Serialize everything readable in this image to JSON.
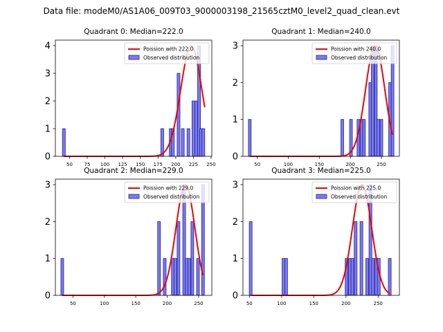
{
  "suptitle": "Data file: modeM0/AS1A06_009T03_9000003198_21565cztM0_level2_quad_clean.evt",
  "colors": {
    "bar_fill": "#7b7bea",
    "bar_edge": "#2020a0",
    "fit_line": "#ee0000"
  },
  "chart_data": [
    {
      "type": "bar",
      "title": "Quadrant 0: Median=222.0",
      "legend": [
        "Poission with 222.0",
        "Observed distribution"
      ],
      "legend_position": "top-right",
      "xlim": [
        30,
        251
      ],
      "ylim": [
        0,
        4.2
      ],
      "xticks": [
        50,
        75,
        100,
        125,
        150,
        175,
        200,
        225,
        250
      ],
      "yticks": [
        0,
        1,
        2,
        3,
        4
      ],
      "bar_width": 4,
      "bars": [
        {
          "x": 42,
          "y": 1
        },
        {
          "x": 181,
          "y": 1
        },
        {
          "x": 193,
          "y": 1
        },
        {
          "x": 196,
          "y": 1
        },
        {
          "x": 204,
          "y": 3
        },
        {
          "x": 210,
          "y": 1
        },
        {
          "x": 218,
          "y": 1
        },
        {
          "x": 225,
          "y": 2
        },
        {
          "x": 229,
          "y": 2
        },
        {
          "x": 233,
          "y": 4
        },
        {
          "x": 236,
          "y": 1
        },
        {
          "x": 239,
          "y": 1
        }
      ],
      "fit": {
        "mu": 222.0,
        "peak": 4.0,
        "x_range": [
          42,
          241
        ]
      }
    },
    {
      "type": "bar",
      "title": "Quadrant 1: Median=240.0",
      "legend": [
        "Poission with 240.0",
        "Observed distribution"
      ],
      "legend_position": "top-right",
      "xlim": [
        27,
        279
      ],
      "ylim": [
        0,
        3.15
      ],
      "xticks": [
        50,
        100,
        150,
        200,
        250
      ],
      "yticks": [
        0,
        1,
        2,
        3
      ],
      "bar_width": 4.4,
      "bars": [
        {
          "x": 38,
          "y": 1
        },
        {
          "x": 187,
          "y": 1
        },
        {
          "x": 201,
          "y": 1
        },
        {
          "x": 213,
          "y": 1
        },
        {
          "x": 218,
          "y": 1
        },
        {
          "x": 222,
          "y": 1
        },
        {
          "x": 232,
          "y": 2
        },
        {
          "x": 236,
          "y": 3
        },
        {
          "x": 241,
          "y": 3
        },
        {
          "x": 245,
          "y": 1
        },
        {
          "x": 250,
          "y": 1
        },
        {
          "x": 264,
          "y": 2
        },
        {
          "x": 268,
          "y": 3
        }
      ],
      "fit": {
        "mu": 240.0,
        "peak": 3.0,
        "x_range": [
          38,
          268
        ]
      }
    },
    {
      "type": "bar",
      "title": "Quadrant 2: Median=229.0",
      "legend": [
        "Poission with 229.0",
        "Observed distribution"
      ],
      "legend_position": "top-right",
      "xlim": [
        22,
        271
      ],
      "ylim": [
        0,
        3.15
      ],
      "xticks": [
        50,
        100,
        150,
        200,
        250
      ],
      "yticks": [
        0,
        1,
        2,
        3
      ],
      "bar_width": 4.4,
      "bars": [
        {
          "x": 33,
          "y": 1
        },
        {
          "x": 187,
          "y": 2
        },
        {
          "x": 196,
          "y": 1
        },
        {
          "x": 209,
          "y": 1
        },
        {
          "x": 213,
          "y": 1
        },
        {
          "x": 218,
          "y": 2
        },
        {
          "x": 227,
          "y": 3
        },
        {
          "x": 231,
          "y": 1
        },
        {
          "x": 235,
          "y": 1
        },
        {
          "x": 240,
          "y": 2
        },
        {
          "x": 249,
          "y": 1
        },
        {
          "x": 257,
          "y": 3
        }
      ],
      "fit": {
        "mu": 229.0,
        "peak": 3.0,
        "x_range": [
          33,
          257
        ]
      }
    },
    {
      "type": "bar",
      "title": "Quadrant 3: Median=225.0",
      "legend": [
        "Poission with 225.0",
        "Observed distribution"
      ],
      "legend_position": "top-right",
      "xlim": [
        40,
        283
      ],
      "ylim": [
        0,
        3.15
      ],
      "xticks": [
        50,
        100,
        150,
        200,
        250
      ],
      "yticks": [
        0,
        1,
        2,
        3
      ],
      "bar_width": 4.4,
      "bars": [
        {
          "x": 52,
          "y": 2
        },
        {
          "x": 103,
          "y": 1
        },
        {
          "x": 107,
          "y": 1
        },
        {
          "x": 201,
          "y": 1
        },
        {
          "x": 206,
          "y": 1
        },
        {
          "x": 210,
          "y": 1
        },
        {
          "x": 215,
          "y": 2
        },
        {
          "x": 224,
          "y": 2
        },
        {
          "x": 233,
          "y": 1
        },
        {
          "x": 238,
          "y": 3
        },
        {
          "x": 242,
          "y": 1
        },
        {
          "x": 247,
          "y": 1
        },
        {
          "x": 251,
          "y": 1
        },
        {
          "x": 268,
          "y": 1
        }
      ],
      "fit": {
        "mu": 225.0,
        "peak": 3.0,
        "x_range": [
          52,
          268
        ]
      }
    }
  ]
}
